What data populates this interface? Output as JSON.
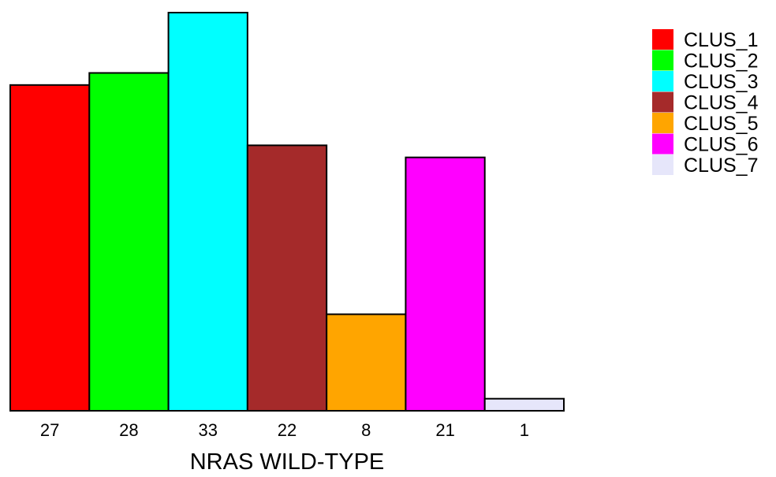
{
  "chart_data": {
    "type": "bar",
    "categories": [
      "27",
      "28",
      "33",
      "22",
      "8",
      "21",
      "1"
    ],
    "values": [
      27,
      28,
      33,
      22,
      8,
      21,
      1
    ],
    "series_names": [
      "CLUS_1",
      "CLUS_2",
      "CLUS_3",
      "CLUS_4",
      "CLUS_5",
      "CLUS_6",
      "CLUS_7"
    ],
    "colors": [
      "#ff0000",
      "#00ff00",
      "#00ffff",
      "#a52a2a",
      "#ffa500",
      "#ff00ff",
      "#e6e6fa"
    ],
    "xlabel": "NRAS WILD-TYPE",
    "ylim": [
      0,
      33
    ],
    "legend_position": "top-right",
    "grid": false
  }
}
